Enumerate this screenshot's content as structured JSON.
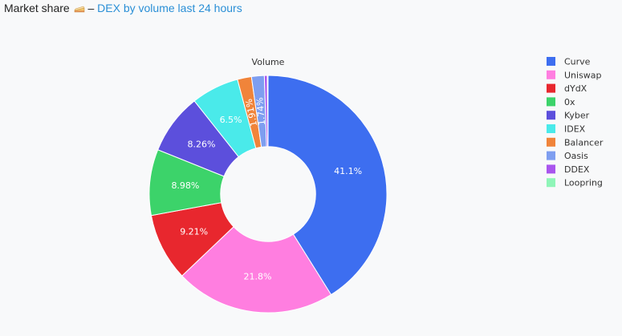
{
  "header": {
    "title": "Market share",
    "separator": " – ",
    "subtitle": "DEX by volume last 24 hours",
    "icon": "cake-icon"
  },
  "colors": {
    "background": "#f8f9fa",
    "link": "#2a8fd6"
  },
  "chart_data": {
    "type": "pie",
    "hole": 0.4,
    "title": "Volume",
    "legend_position": "right",
    "categories": [
      "Curve",
      "Uniswap",
      "dYdX",
      "0x",
      "Kyber",
      "IDEX",
      "Balancer",
      "Oasis",
      "DDEX",
      "Loopring"
    ],
    "values": [
      41.1,
      21.8,
      9.21,
      8.98,
      8.26,
      6.5,
      1.91,
      1.74,
      0.4,
      0.1
    ],
    "labels": [
      "41.1%",
      "21.8%",
      "9.21%",
      "8.98%",
      "8.26%",
      "6.5%",
      "1.91%",
      "1.74%",
      "",
      ""
    ],
    "colors": [
      "#3d6ef0",
      "#ff7ee0",
      "#e8272e",
      "#3cd36a",
      "#5c4fdc",
      "#4aeaea",
      "#f0843a",
      "#7e9ef0",
      "#a955ee",
      "#8ff5b8"
    ]
  }
}
